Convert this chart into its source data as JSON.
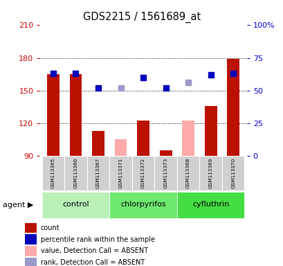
{
  "title": "GDS2215 / 1561689_at",
  "samples": [
    "GSM113365",
    "GSM113366",
    "GSM113367",
    "GSM113371",
    "GSM113372",
    "GSM113373",
    "GSM113368",
    "GSM113369",
    "GSM113370"
  ],
  "groups": [
    {
      "label": "control",
      "color": "#b8f0b8",
      "start": 0,
      "end": 3
    },
    {
      "label": "chlorpyrifos",
      "color": "#6ee86e",
      "start": 3,
      "end": 6
    },
    {
      "label": "cyfluthrin",
      "color": "#44dd44",
      "start": 6,
      "end": 9
    }
  ],
  "count_values": [
    165,
    165,
    113,
    null,
    122,
    95,
    null,
    136,
    179
  ],
  "count_absent_values": [
    null,
    null,
    null,
    105,
    null,
    null,
    122,
    null,
    null
  ],
  "rank_values": [
    63,
    63,
    52,
    null,
    60,
    52,
    null,
    62,
    63
  ],
  "rank_absent_values": [
    null,
    null,
    null,
    52,
    null,
    null,
    56,
    null,
    null
  ],
  "ylim_left": [
    90,
    210
  ],
  "ylim_right": [
    0,
    100
  ],
  "yticks_left": [
    90,
    120,
    150,
    180,
    210
  ],
  "yticks_right": [
    0,
    25,
    50,
    75,
    100
  ],
  "bar_color": "#bb1100",
  "bar_absent_color": "#ffaaaa",
  "dot_color": "#0000bb",
  "dot_absent_color": "#9999cc",
  "figsize": [
    4.1,
    3.84
  ],
  "dpi": 100
}
